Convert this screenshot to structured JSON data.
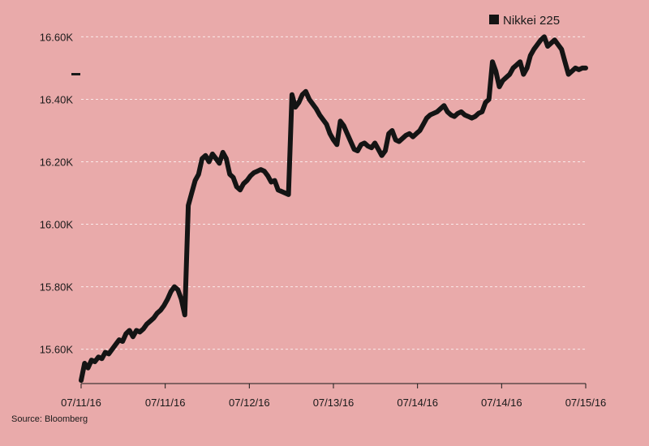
{
  "chart_data": {
    "type": "line",
    "title": "",
    "xlabel": "",
    "ylabel": "",
    "x_tick_labels": [
      "07/11/16",
      "07/11/16",
      "07/12/16",
      "07/13/16",
      "07/14/16",
      "07/14/16",
      "07/15/16"
    ],
    "y_ticks": [
      15600,
      15800,
      16000,
      16200,
      16400,
      16600
    ],
    "y_tick_labels": [
      "15.60K",
      "15.80K",
      "16.00K",
      "16.20K",
      "16.40K",
      "16.60K"
    ],
    "ylim": [
      15490,
      16640
    ],
    "grid": true,
    "legend": "top-right",
    "series": [
      {
        "name": "Nikkei 225",
        "color": "#141414",
        "values": [
          15500,
          15555,
          15540,
          15565,
          15560,
          15575,
          15570,
          15590,
          15585,
          15600,
          15615,
          15630,
          15625,
          15650,
          15660,
          15640,
          15660,
          15655,
          15665,
          15680,
          15690,
          15700,
          15715,
          15725,
          15740,
          15760,
          15785,
          15800,
          15790,
          15760,
          15710,
          16060,
          16100,
          16140,
          16160,
          16210,
          16220,
          16200,
          16225,
          16210,
          16195,
          16230,
          16210,
          16160,
          16150,
          16120,
          16110,
          16130,
          16140,
          16155,
          16165,
          16170,
          16175,
          16170,
          16155,
          16135,
          16140,
          16110,
          16105,
          16100,
          16095,
          16415,
          16375,
          16390,
          16415,
          16425,
          16400,
          16385,
          16370,
          16350,
          16335,
          16320,
          16290,
          16270,
          16255,
          16330,
          16315,
          16290,
          16265,
          16240,
          16235,
          16255,
          16260,
          16250,
          16245,
          16260,
          16240,
          16220,
          16235,
          16290,
          16300,
          16270,
          16265,
          16275,
          16285,
          16290,
          16280,
          16290,
          16300,
          16320,
          16340,
          16350,
          16355,
          16360,
          16370,
          16380,
          16360,
          16350,
          16345,
          16355,
          16360,
          16350,
          16345,
          16340,
          16345,
          16355,
          16360,
          16390,
          16400,
          16520,
          16490,
          16440,
          16460,
          16470,
          16480,
          16500,
          16510,
          16520,
          16480,
          16500,
          16540,
          16560,
          16575,
          16590,
          16600,
          16570,
          16580,
          16590,
          16575,
          16560,
          16520,
          16480,
          16490,
          16500,
          16495,
          16500,
          16500
        ]
      }
    ],
    "source": "Source: Bloomberg"
  }
}
